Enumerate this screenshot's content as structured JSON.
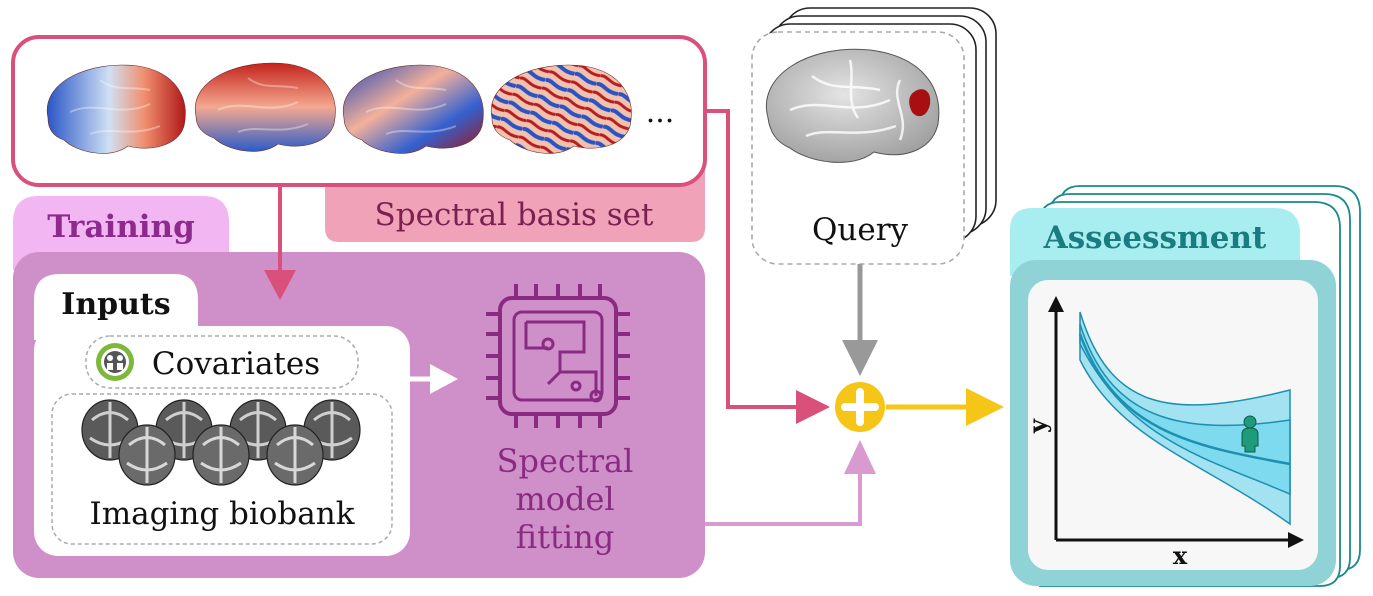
{
  "spectral_basis": {
    "label": "Spectral basis set",
    "ellipsis": "...",
    "maps": [
      "basis-map-1",
      "basis-map-2",
      "basis-map-3",
      "basis-map-4"
    ]
  },
  "query": {
    "label": "Query"
  },
  "training": {
    "label": "Training",
    "inputs": {
      "label": "Inputs",
      "covariates": "Covariates",
      "imaging": "Imaging biobank"
    },
    "model": {
      "line1": "Spectral",
      "line2": "model",
      "line3": "fitting"
    }
  },
  "assessment": {
    "label": "Asseessment",
    "xaxis": "x",
    "yaxis": "y"
  },
  "colors": {
    "basis_border": "#d9507a",
    "basis_tab": "#f0a3b8",
    "training_tab": "#f2b6f2",
    "training_panel": "#cf8fc8",
    "assessment_tab": "#a8eef0",
    "assessment_panel": "#8fd3d6",
    "combine": "#f5c518",
    "query_arrow": "#999999",
    "model_icon": "#8a2b82",
    "band": "#5fd4ec"
  },
  "icons": [
    "brain-surface-icon",
    "chip-icon",
    "plus-icon",
    "person-icon",
    "covariates-icon",
    "brain-slice-icon"
  ]
}
